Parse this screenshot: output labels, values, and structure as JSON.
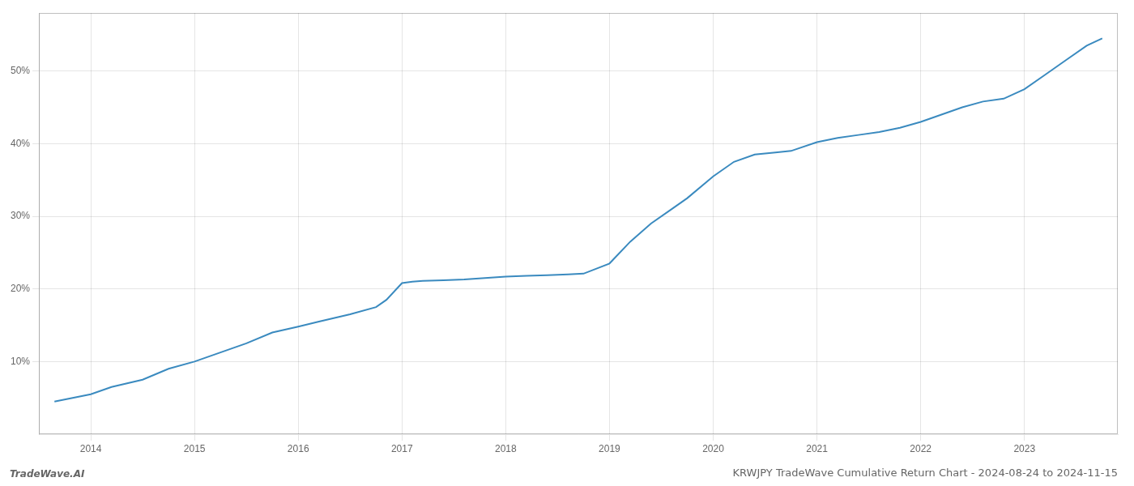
{
  "chart_data": {
    "type": "line",
    "title": "KRWJPY TradeWave Cumulative Return Chart - 2024-08-24 to 2024-11-15",
    "annotations": [
      "TradeWave.AI"
    ],
    "x": [
      2013.65,
      2014.0,
      2014.2,
      2014.5,
      2014.75,
      2015.0,
      2015.2,
      2015.5,
      2015.75,
      2016.0,
      2016.2,
      2016.5,
      2016.75,
      2016.85,
      2017.0,
      2017.1,
      2017.2,
      2017.4,
      2017.6,
      2017.8,
      2018.0,
      2018.2,
      2018.4,
      2018.6,
      2018.75,
      2019.0,
      2019.2,
      2019.4,
      2019.6,
      2019.75,
      2020.0,
      2020.2,
      2020.4,
      2020.6,
      2020.75,
      2021.0,
      2021.2,
      2021.4,
      2021.6,
      2021.8,
      2022.0,
      2022.2,
      2022.4,
      2022.6,
      2022.8,
      2023.0,
      2023.2,
      2023.4,
      2023.6,
      2023.75
    ],
    "values": [
      4.5,
      5.5,
      6.5,
      7.5,
      9.0,
      10.0,
      11.0,
      12.5,
      14.0,
      14.8,
      15.5,
      16.5,
      17.5,
      18.5,
      20.8,
      21.0,
      21.1,
      21.2,
      21.3,
      21.5,
      21.7,
      21.8,
      21.9,
      22.0,
      22.1,
      23.5,
      26.5,
      29.0,
      31.0,
      32.5,
      35.5,
      37.5,
      38.5,
      38.8,
      39.0,
      40.2,
      40.8,
      41.2,
      41.6,
      42.2,
      43.0,
      44.0,
      45.0,
      45.8,
      46.2,
      47.5,
      49.5,
      51.5,
      53.5,
      54.5
    ],
    "color": "#3a8abf",
    "xlim": [
      2013.5,
      2023.9
    ],
    "xticks": [
      2014,
      2015,
      2016,
      2017,
      2018,
      2019,
      2020,
      2021,
      2022,
      2023
    ],
    "ylim": [
      0,
      58
    ],
    "yticks": [
      {
        "value": 10,
        "label": "10%"
      },
      {
        "value": 20,
        "label": "20%"
      },
      {
        "value": 30,
        "label": "30%"
      },
      {
        "value": 40,
        "label": "40%"
      },
      {
        "value": 50,
        "label": "50%"
      }
    ],
    "grid": true
  }
}
